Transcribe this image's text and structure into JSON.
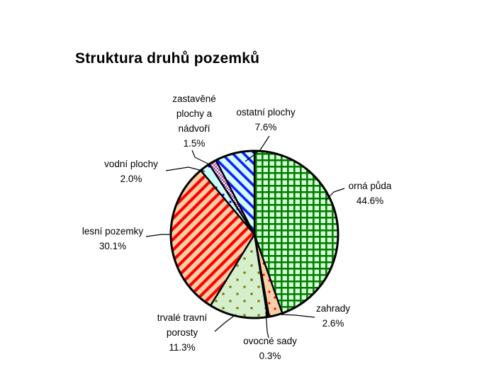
{
  "header": {
    "title": "Struktura druhů pozemků"
  },
  "chart_data": {
    "type": "pie",
    "title": "Struktura druhů pozemků",
    "legend": "none",
    "direction": "clockwise",
    "start_angle_deg": 0,
    "units": "%",
    "categories": [
      "orná půda",
      "zahrady",
      "ovocné sady",
      "trvalé travní porosty",
      "lesní pozemky",
      "vodní plochy",
      "zastavěné plochy a nádvoří",
      "ostatní plochy"
    ],
    "values": [
      44.6,
      2.6,
      0.3,
      11.3,
      30.1,
      2.0,
      1.5,
      7.6
    ],
    "label_texts": [
      "orná půda\n44.6%",
      "zahrady\n2.6%",
      "ovocné sady\n0.3%",
      "trvalé travní\nporosty\n11.3%",
      "lesní pozemky\n30.1%",
      "vodní plochy\n2.0%",
      "zastavěné\nplochy a\nnádvoří\n1.5%",
      "ostatní plochy\n7.6%"
    ],
    "patterns": [
      {
        "kind": "grid",
        "bg": "#d9ffd9",
        "fg": "#008000",
        "size": 9,
        "thick": 2.6
      },
      {
        "kind": "dots",
        "bg": "#f9cfa5",
        "fg": "#ff0000",
        "size": 16,
        "dot": 1.6
      },
      {
        "kind": "solid",
        "bg": "#f9cfa5"
      },
      {
        "kind": "dots",
        "bg": "#d5efcd",
        "fg": "#808000",
        "size": 20,
        "dot": 1.8
      },
      {
        "kind": "stripes-up",
        "bg": "#f9cfa5",
        "fg": "#ff0000",
        "size": 10.5,
        "thick": 4.2
      },
      {
        "kind": "dots",
        "bg": "#ccffff",
        "fg": "#0000ff",
        "size": 20,
        "dot": 1.6
      },
      {
        "kind": "checker",
        "bg": "#ffffff",
        "fg": "#993399",
        "size": 4.6
      },
      {
        "kind": "stripes-down",
        "bg": "#cfffff",
        "fg": "#1a1aff",
        "size": 11,
        "thick": 3.6
      }
    ],
    "outline_color": "#000000"
  }
}
